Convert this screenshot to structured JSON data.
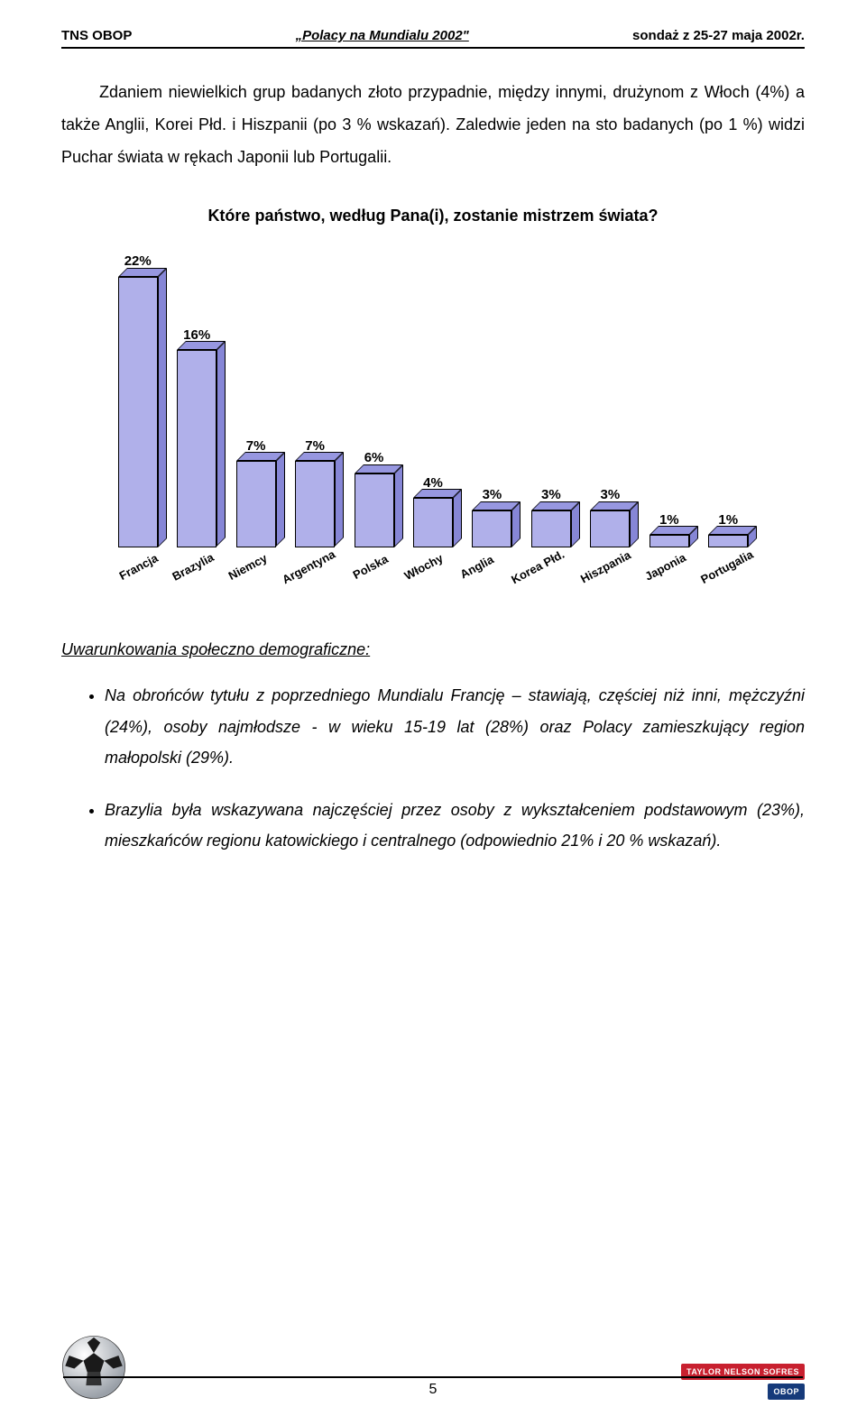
{
  "header": {
    "left": "TNS OBOP",
    "center": "„Polacy na Mundialu 2002\"",
    "right": "sondaż z 25-27 maja 2002r."
  },
  "paragraph": "Zdaniem niewielkich grup badanych złoto przypadnie, między innymi, drużynom z Włoch (4%) a także Anglii, Korei Płd. i Hiszpanii (po 3 % wskazań). Zaledwie jeden na sto badanych (po 1 %) widzi Puchar świata w rękach Japonii lub Portugalii.",
  "chart": {
    "title": "Które państwo, według Pana(i), zostanie mistrzem świata?",
    "type": "bar",
    "max_value": 22,
    "bar_front_color": "#b0b0ea",
    "bar_top_color": "#9797e0",
    "bar_side_color": "#8686d6",
    "border_color": "#000000",
    "background_color": "#ffffff",
    "label_fontsize": 15,
    "xlabel_fontsize": 13,
    "bars": [
      {
        "label": "22%",
        "category": "Francja",
        "value": 22
      },
      {
        "label": "16%",
        "category": "Brazylia",
        "value": 16
      },
      {
        "label": "7%",
        "category": "Niemcy",
        "value": 7
      },
      {
        "label": "7%",
        "category": "Argentyna",
        "value": 7
      },
      {
        "label": "6%",
        "category": "Polska",
        "value": 6
      },
      {
        "label": "4%",
        "category": "Włochy",
        "value": 4
      },
      {
        "label": "3%",
        "category": "Anglia",
        "value": 3
      },
      {
        "label": "3%",
        "category": "Korea Płd.",
        "value": 3
      },
      {
        "label": "3%",
        "category": "Hiszpania",
        "value": 3
      },
      {
        "label": "1%",
        "category": "Japonia",
        "value": 1
      },
      {
        "label": "1%",
        "category": "Portugalia",
        "value": 1
      }
    ]
  },
  "section_heading": "Uwarunkowania społeczno demograficzne:",
  "bullets": [
    "Na obrońców tytułu z poprzedniego Mundialu Francję – stawiają, częściej niż inni, mężczyźni (24%), osoby najmłodsze - w wieku 15-19 lat (28%) oraz Polacy zamieszkujący region małopolski (29%).",
    "Brazylia była wskazywana najczęściej przez osoby z wykształceniem podstawowym (23%), mieszkańców regionu katowickiego i centralnego (odpowiednio 21% i 20 % wskazań)."
  ],
  "footer": {
    "page_number": "5",
    "logo1_text": "TAYLOR NELSON SOFRES",
    "logo1_bg": "#c8202f",
    "logo2_text": "OBOP",
    "logo2_bg": "#163a7a"
  }
}
